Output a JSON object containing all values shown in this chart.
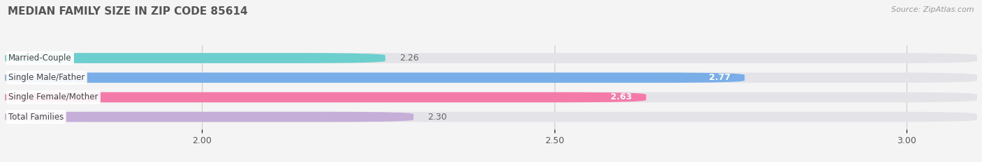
{
  "title": "MEDIAN FAMILY SIZE IN ZIP CODE 85614",
  "source": "Source: ZipAtlas.com",
  "categories": [
    "Married-Couple",
    "Single Male/Father",
    "Single Female/Mother",
    "Total Families"
  ],
  "values": [
    2.26,
    2.77,
    2.63,
    2.3
  ],
  "colors": [
    "#6dcece",
    "#7aaee8",
    "#f47aaa",
    "#c5aed8"
  ],
  "bar_height": 0.52,
  "xmin": 1.72,
  "xmax": 3.1,
  "xlim_display": [
    1.72,
    3.1
  ],
  "xticks": [
    2.0,
    2.5,
    3.0
  ],
  "background_color": "#f4f4f4",
  "bar_bg_color": "#e4e4e8",
  "label_color": "#555555",
  "title_color": "#555555",
  "source_color": "#999999",
  "value_label_inside_color": "#ffffff",
  "value_label_outside_color": "#666666",
  "value_inside_threshold": 2.55
}
